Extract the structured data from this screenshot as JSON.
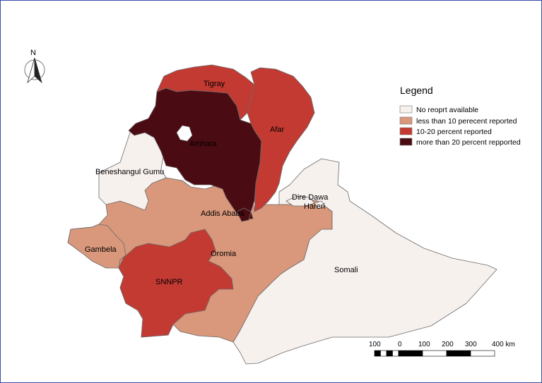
{
  "north_arrow": {
    "label": "N",
    "icon": "north-arrow-icon"
  },
  "legend": {
    "title": "Legend",
    "items": [
      {
        "label": "No reoprt available",
        "color": "#f7f1ee"
      },
      {
        "label": "less than 10 perecent reported",
        "color": "#d9977b"
      },
      {
        "label": "10-20 percent reported",
        "color": "#c33a32"
      },
      {
        "label": "more than 20 percent repported",
        "color": "#4a0b12"
      }
    ]
  },
  "regions": [
    {
      "id": "tigray",
      "label": "Tigray",
      "category": "10-20 percent reported"
    },
    {
      "id": "afar",
      "label": "Afar",
      "category": "10-20 percent reported"
    },
    {
      "id": "amhara",
      "label": "Amhara",
      "category": "more than 20 percent repported"
    },
    {
      "id": "beneshangul",
      "label": "Beneshangul Gumu",
      "category": "No reoprt available"
    },
    {
      "id": "dire-dawa",
      "label": "Dire Dawa",
      "category": "No reoprt available"
    },
    {
      "id": "harari",
      "label": "Hareri",
      "category": "No reoprt available"
    },
    {
      "id": "addis-ababa",
      "label": "Addis Ababa",
      "category": "more than 20 percent repported"
    },
    {
      "id": "oromia",
      "label": "Oromia",
      "category": "less than 10 perecent reported"
    },
    {
      "id": "gambela",
      "label": "Gambela",
      "category": "less than 10 perecent reported"
    },
    {
      "id": "snnpr",
      "label": "SNNPR",
      "category": "10-20 percent reported"
    },
    {
      "id": "somali",
      "label": "Somali",
      "category": "No reoprt available"
    }
  ],
  "scale_bar": {
    "ticks": [
      "100",
      "0",
      "100",
      "200",
      "300",
      "400 km"
    ]
  }
}
